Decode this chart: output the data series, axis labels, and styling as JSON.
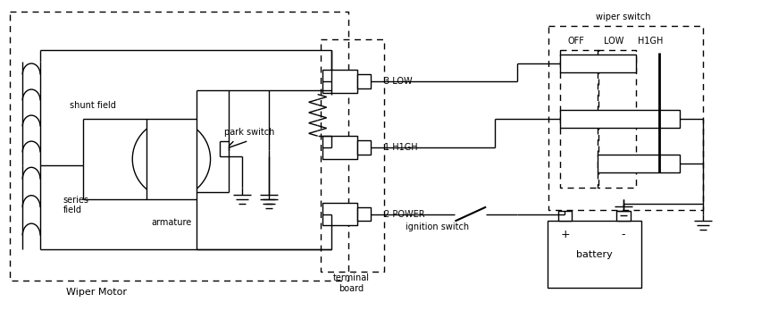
{
  "bg_color": "#ffffff",
  "line_color": "#000000",
  "labels": {
    "shunt_field": "shunt field",
    "series_field": "series\nfield",
    "armature": "armature",
    "park_switch": "park switch",
    "terminal_board": "terminal\nboard",
    "wiper_motor": "Wiper Motor",
    "wiper_switch": "wiper switch",
    "off": "OFF",
    "low": "LOW",
    "high": "H1GH",
    "three_low": "3 LOW",
    "one_high": "1 H1GH",
    "two_power": "2 POWER",
    "ignition_switch": "ignition switch",
    "battery": "battery",
    "plus": "+",
    "minus": "-"
  }
}
